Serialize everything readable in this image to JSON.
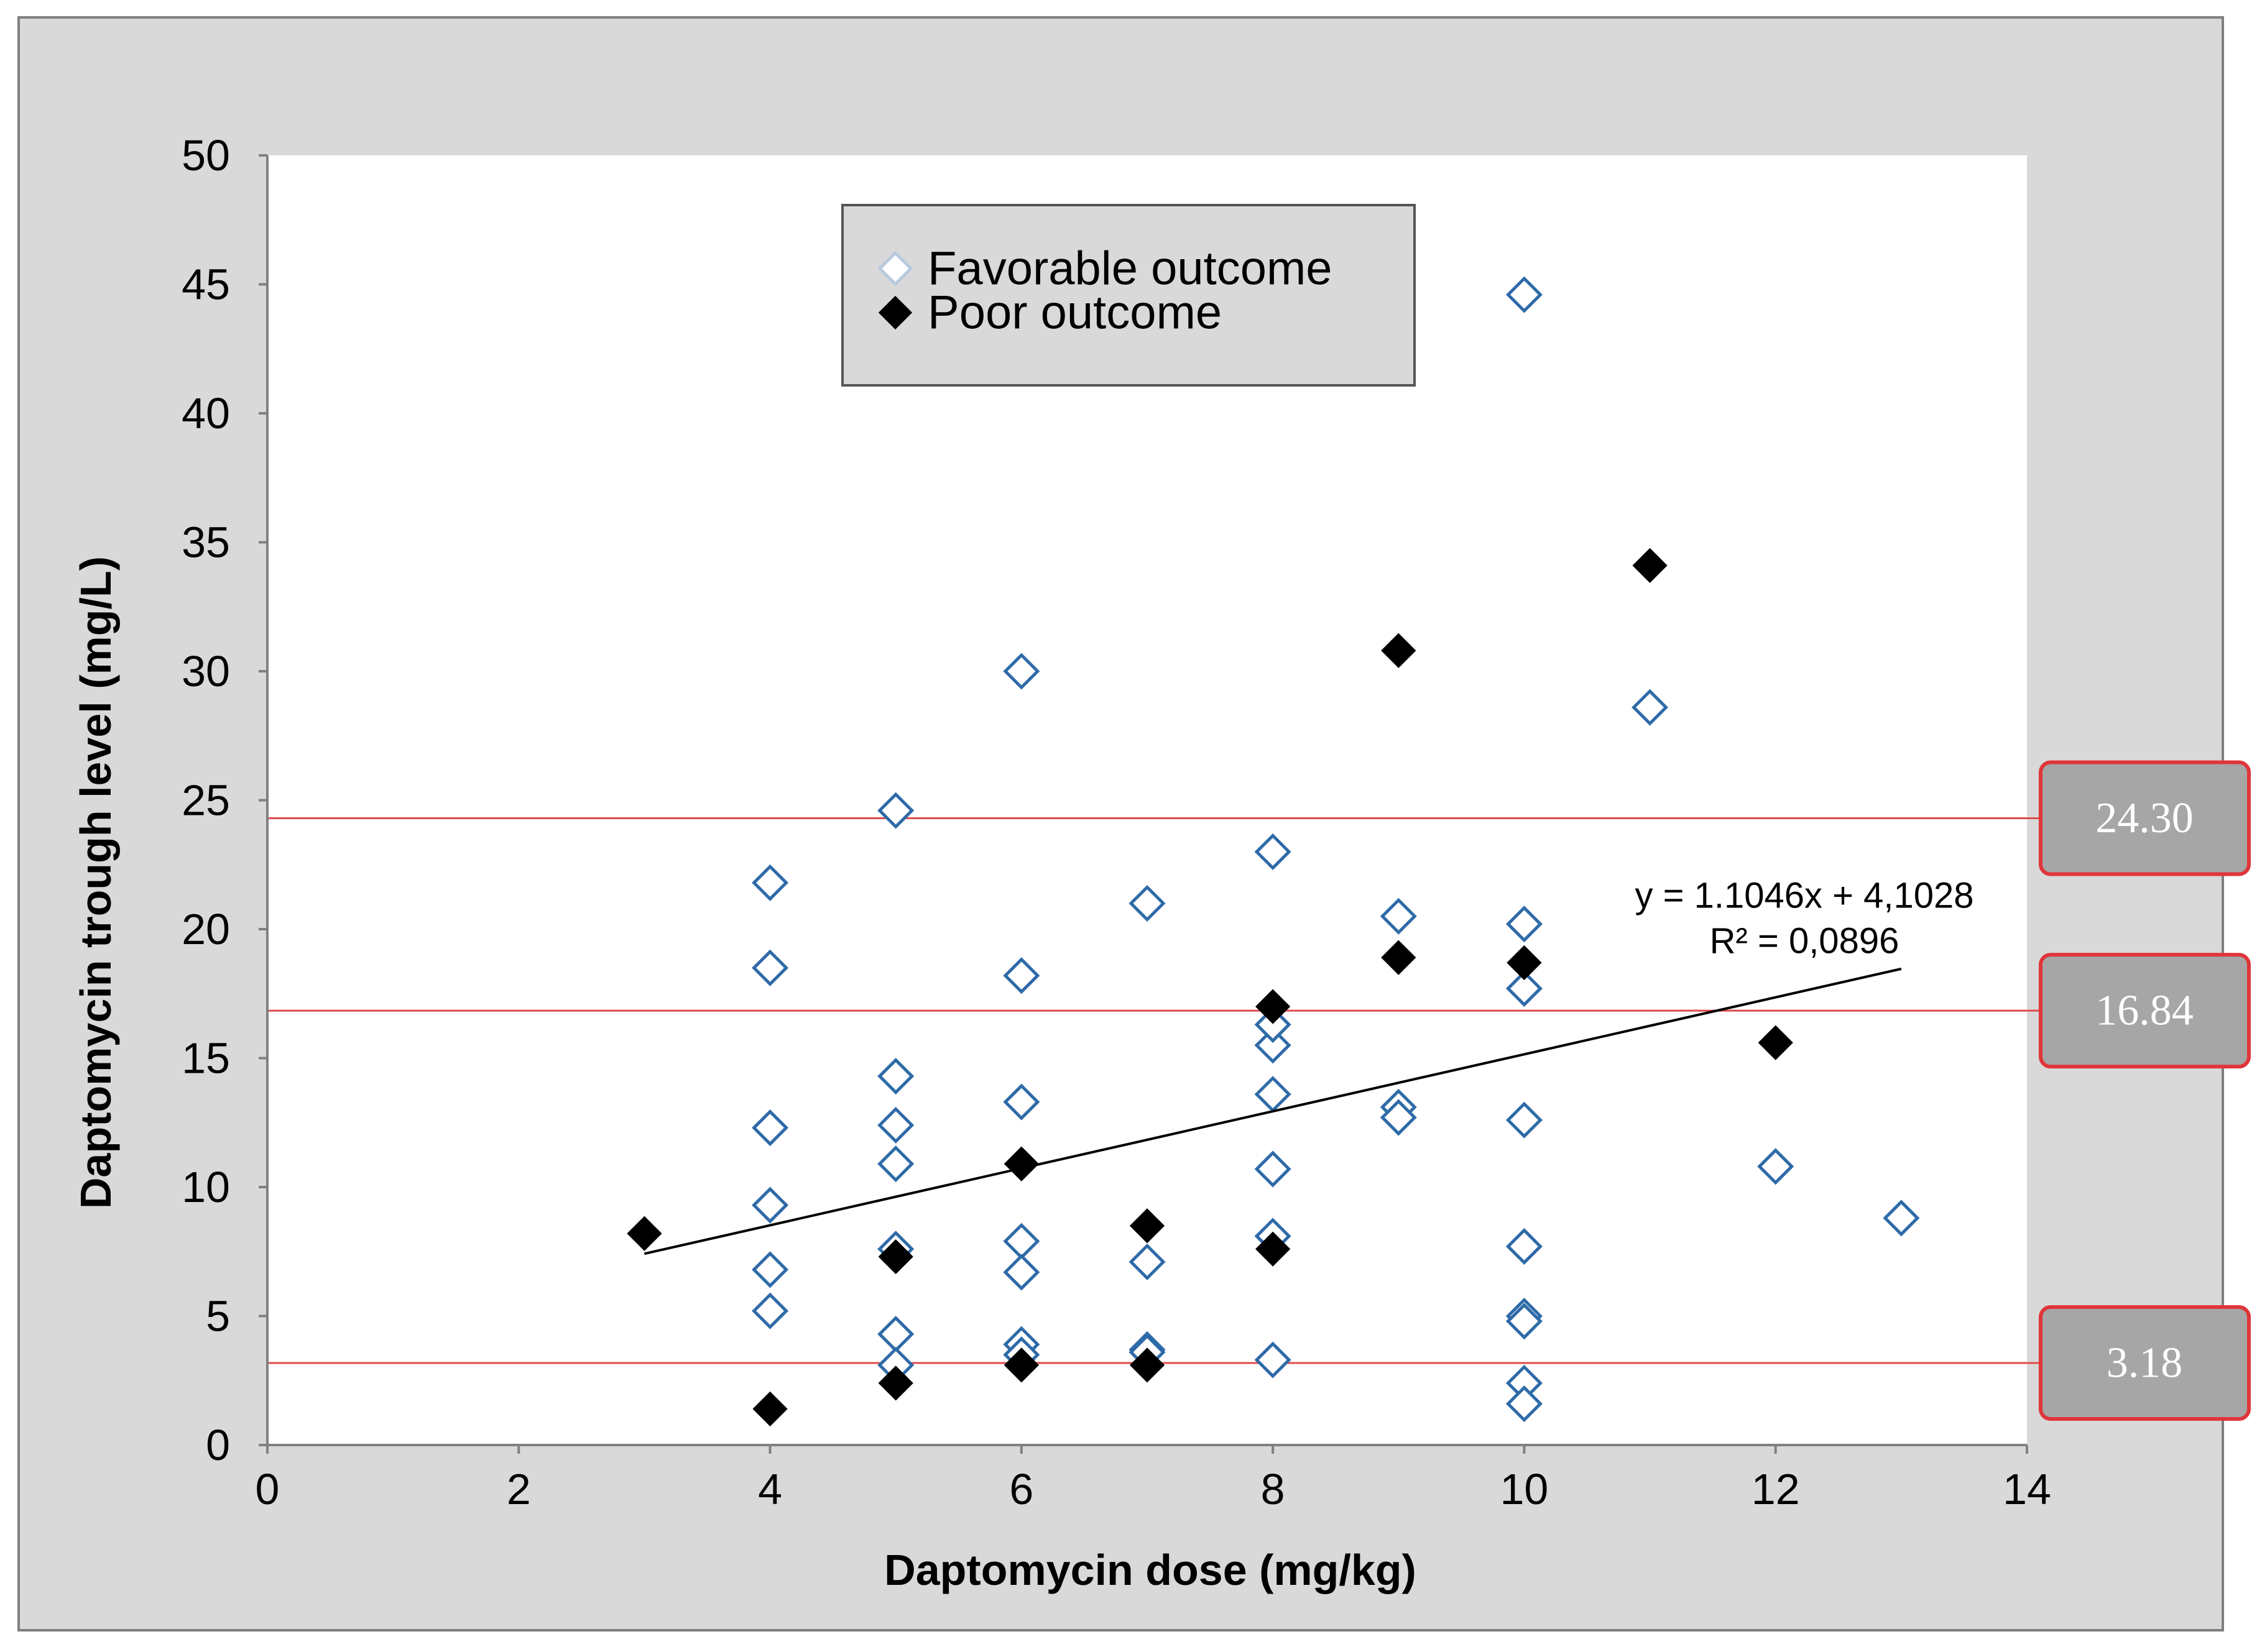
{
  "chart_data": {
    "type": "scatter",
    "xlabel": "Daptomycin dose (mg/kg)",
    "ylabel": "Daptomycin trough level (mg/L)",
    "xlim": [
      0,
      14
    ],
    "ylim": [
      0,
      50
    ],
    "xticks": [
      "0",
      "2",
      "4",
      "6",
      "8",
      "10",
      "12",
      "14"
    ],
    "yticks": [
      "0",
      "5",
      "10",
      "15",
      "20",
      "25",
      "30",
      "35",
      "40",
      "45",
      "50"
    ],
    "grid": false,
    "legend_position": "top-center",
    "series": [
      {
        "name": "Favorable outcome",
        "marker": "open-diamond",
        "color": "#2e6aa8",
        "x": [
          4,
          4,
          4,
          4,
          4,
          4,
          5,
          5,
          5,
          5,
          5,
          5,
          5,
          6,
          6,
          6,
          6,
          6,
          6,
          6,
          7,
          7,
          7,
          7,
          8,
          8,
          8,
          8,
          8,
          8,
          8,
          9,
          9,
          9,
          10,
          10,
          10,
          10,
          10,
          10,
          10,
          10,
          10,
          11,
          12,
          13
        ],
        "y": [
          21.8,
          18.5,
          12.3,
          9.3,
          6.8,
          5.2,
          24.6,
          14.3,
          12.4,
          10.9,
          7.6,
          4.3,
          3.1,
          30.0,
          18.2,
          13.3,
          7.9,
          6.7,
          3.9,
          3.5,
          21.0,
          7.1,
          3.7,
          3.6,
          23.0,
          15.5,
          13.6,
          10.7,
          8.1,
          3.3,
          16.3,
          20.5,
          13.1,
          12.7,
          44.6,
          20.2,
          17.7,
          12.6,
          7.7,
          5.0,
          4.8,
          2.4,
          1.6,
          28.6,
          10.8,
          8.8
        ]
      },
      {
        "name": "Poor outcome",
        "marker": "filled-diamond",
        "color": "#000000",
        "x": [
          3,
          4,
          5,
          5,
          6,
          6,
          7,
          7,
          8,
          8,
          9,
          9,
          10,
          11,
          12
        ],
        "y": [
          8.2,
          1.4,
          7.3,
          2.4,
          10.9,
          3.1,
          8.5,
          3.1,
          17.0,
          7.6,
          30.8,
          18.9,
          18.7,
          34.1,
          15.6
        ]
      }
    ],
    "trendline": {
      "slope": 1.1046,
      "intercept": 4.1028,
      "x_range": [
        3,
        13
      ],
      "equation_label": "y = 1.1046x  + 4,1028",
      "r2_label": "R² = 0,0896"
    },
    "reference_lines": [
      {
        "y": 24.3,
        "label": "24.30",
        "color": "#e04a4a"
      },
      {
        "y": 16.84,
        "label": "16.84",
        "color": "#e04a4a"
      },
      {
        "y": 3.18,
        "label": "3.18",
        "color": "#e04a4a"
      }
    ]
  },
  "colors": {
    "frame_background": "#d9d9d9",
    "plot_background": "#ffffff",
    "legend_background": "#d9d9d9",
    "label_box_fill": "#a6a6a6",
    "label_box_border": "#e0353a"
  }
}
